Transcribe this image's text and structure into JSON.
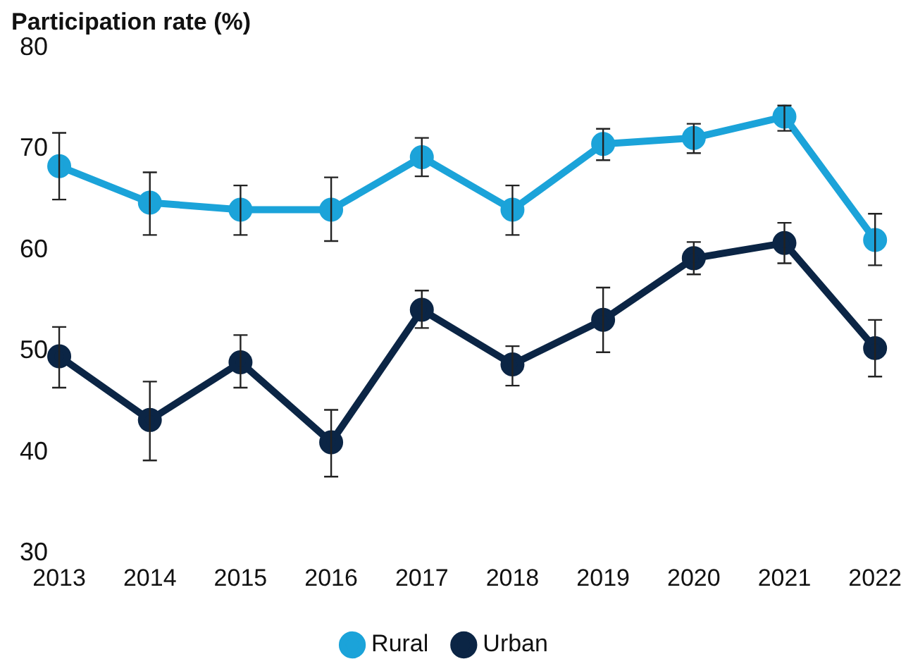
{
  "chart_data": {
    "type": "line",
    "ylabel": "Participation rate (%)",
    "categories": [
      "2013",
      "2014",
      "2015",
      "2016",
      "2017",
      "2018",
      "2019",
      "2020",
      "2021",
      "2022"
    ],
    "ylim": [
      30,
      80
    ],
    "yticks": [
      30,
      40,
      50,
      60,
      70,
      80
    ],
    "grid": false,
    "legend": "bottom",
    "marker": "circle",
    "line_style": "solid",
    "series": [
      {
        "name": "Rural",
        "color": "#1ba3d9",
        "values": [
          68.3,
          64.7,
          64.0,
          64.0,
          69.2,
          64.0,
          70.5,
          71.1,
          73.2,
          61.0
        ],
        "errors": [
          [
            65.0,
            71.6
          ],
          [
            61.5,
            67.7
          ],
          [
            61.5,
            66.4
          ],
          [
            60.9,
            67.2
          ],
          [
            67.3,
            71.1
          ],
          [
            61.5,
            66.4
          ],
          [
            68.9,
            72.0
          ],
          [
            69.6,
            72.5
          ],
          [
            71.8,
            74.3
          ],
          [
            58.5,
            63.6
          ]
        ]
      },
      {
        "name": "Urban",
        "color": "#0b2545",
        "values": [
          49.5,
          43.2,
          48.9,
          41.0,
          54.1,
          48.7,
          53.1,
          59.2,
          60.7,
          50.3
        ],
        "errors": [
          [
            46.4,
            52.4
          ],
          [
            39.2,
            47.0
          ],
          [
            46.4,
            51.6
          ],
          [
            37.6,
            44.2
          ],
          [
            52.3,
            56.0
          ],
          [
            46.6,
            50.5
          ],
          [
            49.9,
            56.3
          ],
          [
            57.6,
            60.8
          ],
          [
            58.7,
            62.7
          ],
          [
            47.5,
            53.1
          ]
        ]
      }
    ]
  }
}
